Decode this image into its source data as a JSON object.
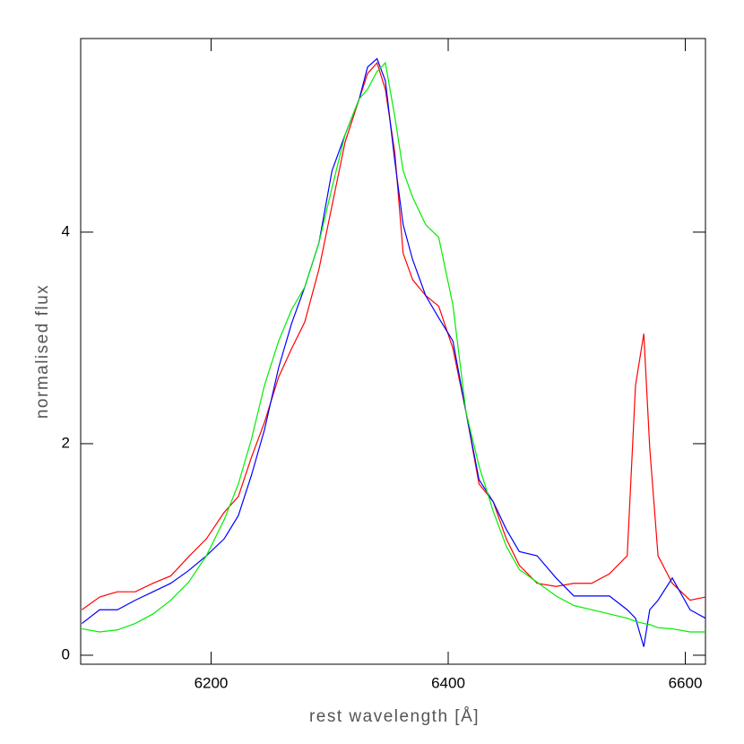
{
  "chart_data": {
    "type": "line",
    "x_label": "rest wavelength [Å]",
    "y_label": "normalised flux",
    "x": [
      6091,
      6106,
      6121,
      6136,
      6151,
      6166,
      6181,
      6196,
      6211,
      6223,
      6234,
      6245,
      6257,
      6268,
      6279,
      6291,
      6302,
      6313,
      6325,
      6332,
      6340,
      6347,
      6355,
      6362,
      6370,
      6381,
      6392,
      6404,
      6415,
      6426,
      6438,
      6449,
      6460,
      6475,
      6491,
      6506,
      6521,
      6536,
      6551,
      6558,
      6565,
      6570,
      6577,
      6589,
      6604,
      6617
    ],
    "series": [
      {
        "name": "red",
        "color": "#ff0000",
        "values": [
          0.43,
          0.55,
          0.6,
          0.6,
          0.68,
          0.75,
          0.93,
          1.1,
          1.35,
          1.5,
          1.87,
          2.2,
          2.63,
          2.9,
          3.15,
          3.65,
          4.25,
          4.85,
          5.26,
          5.5,
          5.6,
          5.35,
          4.75,
          3.8,
          3.55,
          3.4,
          3.3,
          2.9,
          2.3,
          1.62,
          1.45,
          1.1,
          0.85,
          0.68,
          0.65,
          0.68,
          0.68,
          0.77,
          0.94,
          2.55,
          3.04,
          1.96,
          0.94,
          0.68,
          0.52,
          0.55
        ]
      },
      {
        "name": "blue",
        "color": "#0000ff",
        "values": [
          0.3,
          0.43,
          0.43,
          0.52,
          0.6,
          0.68,
          0.8,
          0.94,
          1.1,
          1.32,
          1.7,
          2.13,
          2.72,
          3.14,
          3.48,
          3.9,
          4.58,
          4.92,
          5.26,
          5.56,
          5.64,
          5.43,
          4.67,
          4.07,
          3.74,
          3.4,
          3.19,
          2.97,
          2.3,
          1.66,
          1.45,
          1.19,
          0.98,
          0.94,
          0.73,
          0.56,
          0.56,
          0.56,
          0.43,
          0.35,
          0.08,
          0.43,
          0.52,
          0.73,
          0.43,
          0.35
        ]
      },
      {
        "name": "green",
        "color": "#00ee00",
        "values": [
          0.25,
          0.22,
          0.24,
          0.3,
          0.39,
          0.52,
          0.69,
          0.94,
          1.28,
          1.62,
          2.04,
          2.55,
          2.97,
          3.27,
          3.48,
          3.9,
          4.42,
          4.92,
          5.26,
          5.35,
          5.52,
          5.6,
          5.09,
          4.58,
          4.33,
          4.07,
          3.95,
          3.31,
          2.3,
          1.79,
          1.36,
          1.03,
          0.81,
          0.69,
          0.56,
          0.47,
          0.43,
          0.39,
          0.35,
          0.32,
          0.3,
          0.29,
          0.26,
          0.25,
          0.22,
          0.22
        ]
      }
    ],
    "xlim": [
      6090,
      6617
    ],
    "xticks": [
      6200,
      6400,
      6600
    ],
    "ylim": [
      -0.085,
      5.83
    ],
    "yticks": [
      0,
      2,
      4
    ]
  }
}
